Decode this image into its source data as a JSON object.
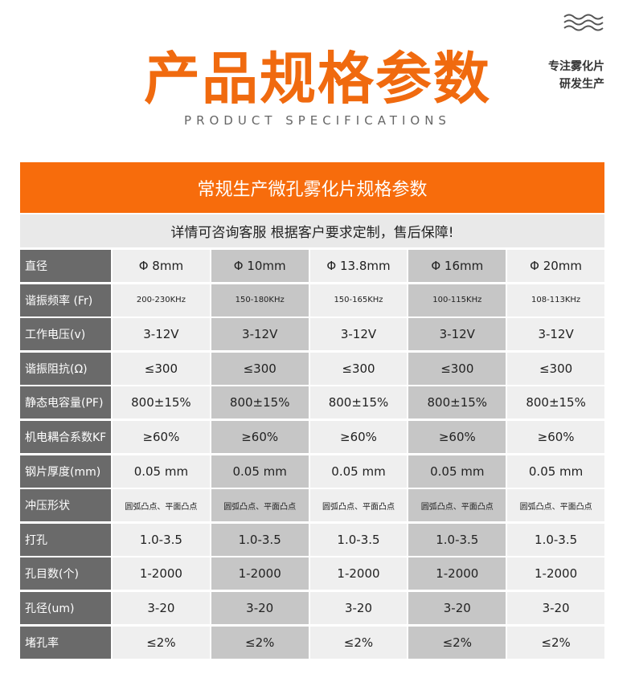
{
  "header": {
    "title": "产品规格参数",
    "subtitle": "PRODUCT SPECIFICATIONS",
    "side_text": [
      "专注雾化片",
      "研发生产"
    ]
  },
  "table": {
    "title": "常规生产微孔雾化片规格参数",
    "note": "详情可咨询客服 根据客户要求定制，售后保障!",
    "rows": [
      [
        "直径",
        "Φ 8mm",
        "Φ 10mm",
        "Φ 13.8mm",
        "Φ 16mm",
        "Φ 20mm"
      ],
      [
        "谐振频率 (Fr)",
        "200-230KHz",
        "150-180KHz",
        "150-165KHz",
        "100-115KHz",
        "108-113KHz"
      ],
      [
        "工作电压(v)",
        "3-12V",
        "3-12V",
        "3-12V",
        "3-12V",
        "3-12V"
      ],
      [
        "谐振阻抗(Ω)",
        "≤300",
        "≤300",
        "≤300",
        "≤300",
        "≤300"
      ],
      [
        "静态电容量(PF)",
        "800±15%",
        "800±15%",
        "800±15%",
        "800±15%",
        "800±15%"
      ],
      [
        "机电耦合系数KF",
        "≥60%",
        "≥60%",
        "≥60%",
        "≥60%",
        "≥60%"
      ],
      [
        "钢片厚度(mm)",
        "0.05 mm",
        "0.05 mm",
        "0.05 mm",
        "0.05 mm",
        "0.05 mm"
      ],
      [
        "冲压形状",
        "圆弧凸点、平面凸点",
        "圆弧凸点、平面凸点",
        "圆弧凸点、平面凸点",
        "圆弧凸点、平面凸点",
        "圆弧凸点、平面凸点"
      ],
      [
        "打孔",
        "1.0-3.5",
        "1.0-3.5",
        "1.0-3.5",
        "1.0-3.5",
        "1.0-3.5"
      ],
      [
        "孔目数(个)",
        "1-2000",
        "1-2000",
        "1-2000",
        "1-2000",
        "1-2000"
      ],
      [
        "孔径(um)",
        "3-20",
        "3-20",
        "3-20",
        "3-20",
        "3-20"
      ],
      [
        "堵孔率",
        "≤2%",
        "≤2%",
        "≤2%",
        "≤2%",
        "≤2%"
      ]
    ]
  }
}
